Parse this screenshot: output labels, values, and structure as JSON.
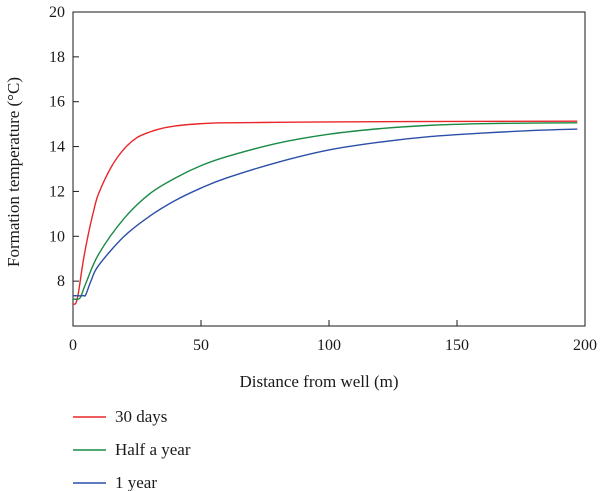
{
  "chart_data": {
    "type": "line",
    "title": "",
    "xlabel": "Distance from well (m)",
    "ylabel": "Formation temperature (°C)",
    "xlim": [
      0,
      200
    ],
    "ylim": [
      6,
      20
    ],
    "xticks": [
      0,
      50,
      100,
      150,
      200
    ],
    "yticks": [
      8,
      10,
      12,
      14,
      16,
      18,
      20
    ],
    "grid": false,
    "legend_position": "bottom-left",
    "series": [
      {
        "name": "30 days",
        "color": "#e8262a",
        "x": [
          0,
          1,
          2,
          4,
          6,
          8,
          10,
          15,
          20,
          25,
          30,
          35,
          40,
          45,
          50,
          55,
          60,
          80,
          100,
          150,
          197
        ],
        "y": [
          7.0,
          7.0,
          7.4,
          8.9,
          10.1,
          11.1,
          11.9,
          13.1,
          13.9,
          14.4,
          14.65,
          14.82,
          14.92,
          14.98,
          15.02,
          15.05,
          15.06,
          15.08,
          15.1,
          15.12,
          15.13
        ]
      },
      {
        "name": "Half a year",
        "color": "#1a8a45",
        "x": [
          0,
          2,
          3,
          5,
          10,
          20,
          30,
          40,
          50,
          60,
          80,
          100,
          120,
          140,
          160,
          180,
          197
        ],
        "y": [
          7.2,
          7.2,
          7.3,
          7.9,
          9.2,
          10.8,
          11.9,
          12.6,
          13.15,
          13.55,
          14.15,
          14.55,
          14.8,
          14.95,
          15.02,
          15.05,
          15.06
        ]
      },
      {
        "name": "1 year",
        "color": "#2b4fa8",
        "x": [
          0,
          4,
          5,
          7,
          10,
          20,
          30,
          40,
          50,
          60,
          80,
          100,
          120,
          140,
          160,
          180,
          197
        ],
        "y": [
          7.35,
          7.35,
          7.4,
          8.0,
          8.7,
          10.0,
          10.9,
          11.6,
          12.15,
          12.6,
          13.3,
          13.85,
          14.2,
          14.45,
          14.6,
          14.72,
          14.78
        ]
      }
    ]
  }
}
